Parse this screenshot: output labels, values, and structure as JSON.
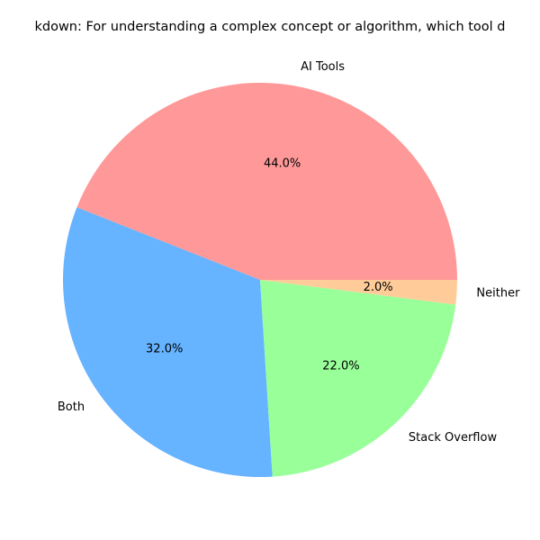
{
  "chart_data": {
    "type": "pie",
    "title": "kdown: For understanding a complex concept or algorithm, which tool d",
    "categories": [
      "AI Tools",
      "Stack Overflow",
      "Neither",
      "Both"
    ],
    "values": [
      44.0,
      22.0,
      2.0,
      32.0
    ],
    "slice_order_counterclockwise_from_0deg": [
      "AI Tools",
      "Both",
      "Stack Overflow",
      "Neither"
    ],
    "percent_labels": [
      "44.0%",
      "32.0%",
      "22.0%",
      "2.0%"
    ],
    "colors": {
      "AI Tools": "#ff9999",
      "Both": "#66b3ff",
      "Stack Overflow": "#99ff99",
      "Neither": "#ffcc99"
    },
    "legend": "none",
    "grid": false
  }
}
